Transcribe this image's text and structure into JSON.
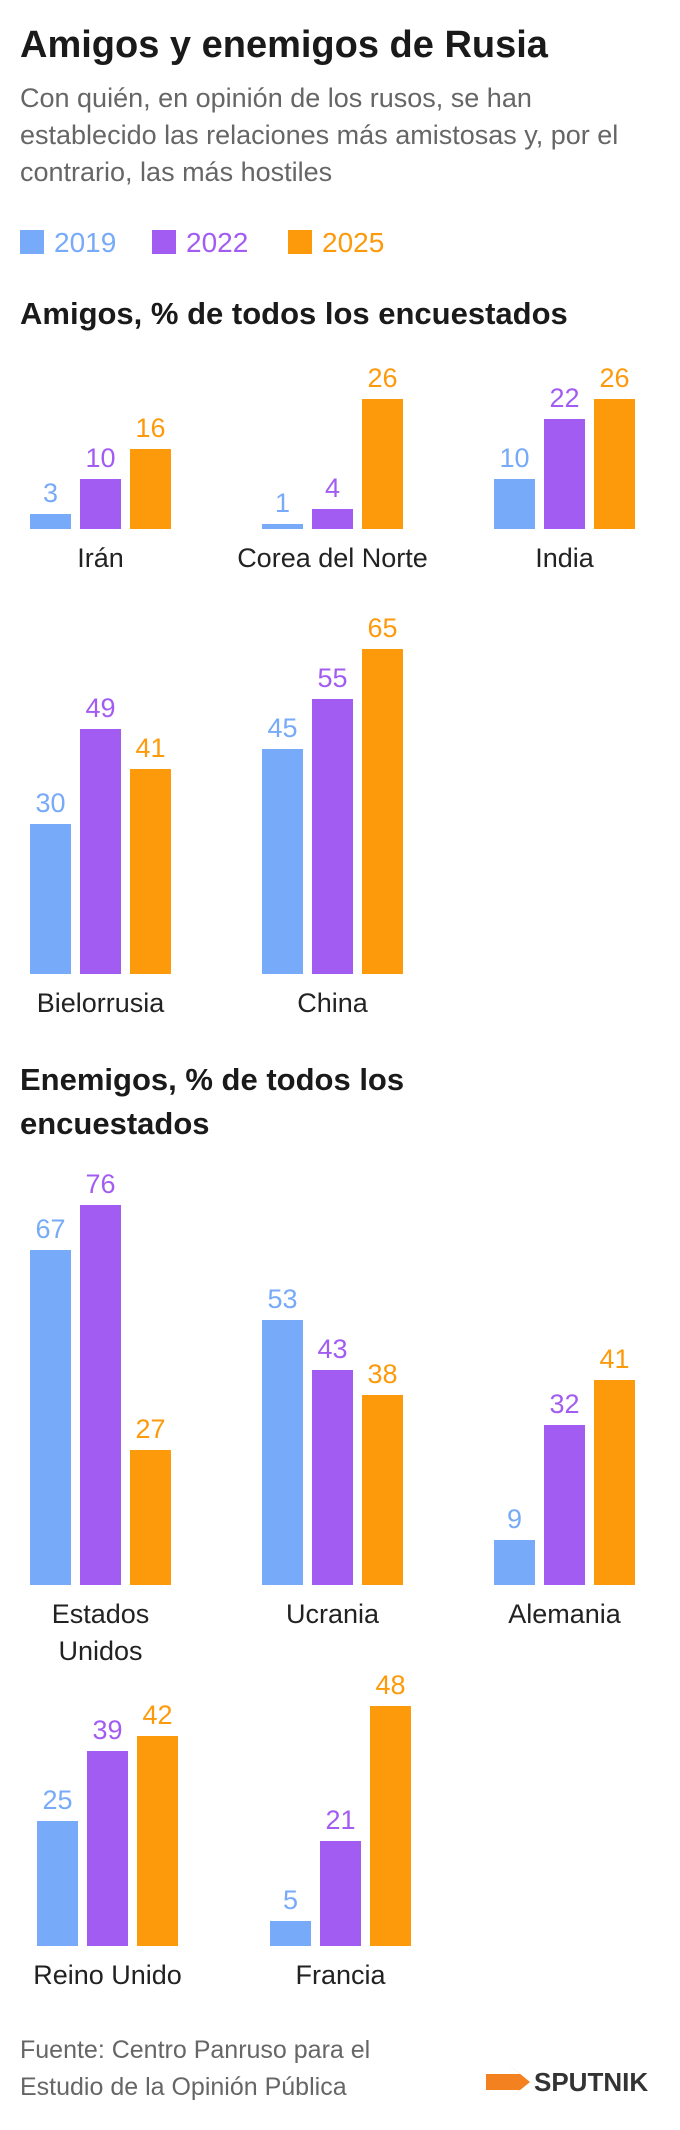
{
  "title": "Amigos y enemigos de Rusia",
  "subtitle": "Con quién, en opinión de los rusos, se han establecido las relaciones más amistosas y, por el contrario, las más hostiles",
  "source": [
    "Fuente: Centro Panruso para el",
    "Estudio de la Opinión Pública"
  ],
  "brand": "SPUTNIK",
  "chart_data": [
    {
      "type": "bar",
      "title": "Amigos, % de todos los encuestados",
      "categories": [
        "Irán",
        "Corea del Norte",
        "India",
        "Bielorrusia",
        "China"
      ],
      "series": [
        {
          "name": "2019",
          "color": "#77aaf8",
          "values": [
            3,
            1,
            10,
            30,
            45
          ]
        },
        {
          "name": "2022",
          "color": "#a35cf2",
          "values": [
            10,
            4,
            22,
            49,
            55
          ]
        },
        {
          "name": "2025",
          "color": "#fd9a0b",
          "values": [
            16,
            26,
            26,
            41,
            65
          ]
        }
      ]
    },
    {
      "type": "bar",
      "title": "Enemigos, % de todos los encuestados",
      "categories": [
        "Estados Unidos",
        "Ucrania",
        "Alemania",
        "Reino Unido",
        "Francia"
      ],
      "series": [
        {
          "color": "#77aaf8",
          "values": [
            67,
            53,
            9,
            25,
            5
          ]
        },
        {
          "color": "#a35cf2",
          "values": [
            76,
            43,
            32,
            39,
            21
          ]
        },
        {
          "color": "#fd9a0b",
          "values": [
            27,
            38,
            41,
            42,
            48
          ]
        }
      ]
    }
  ]
}
